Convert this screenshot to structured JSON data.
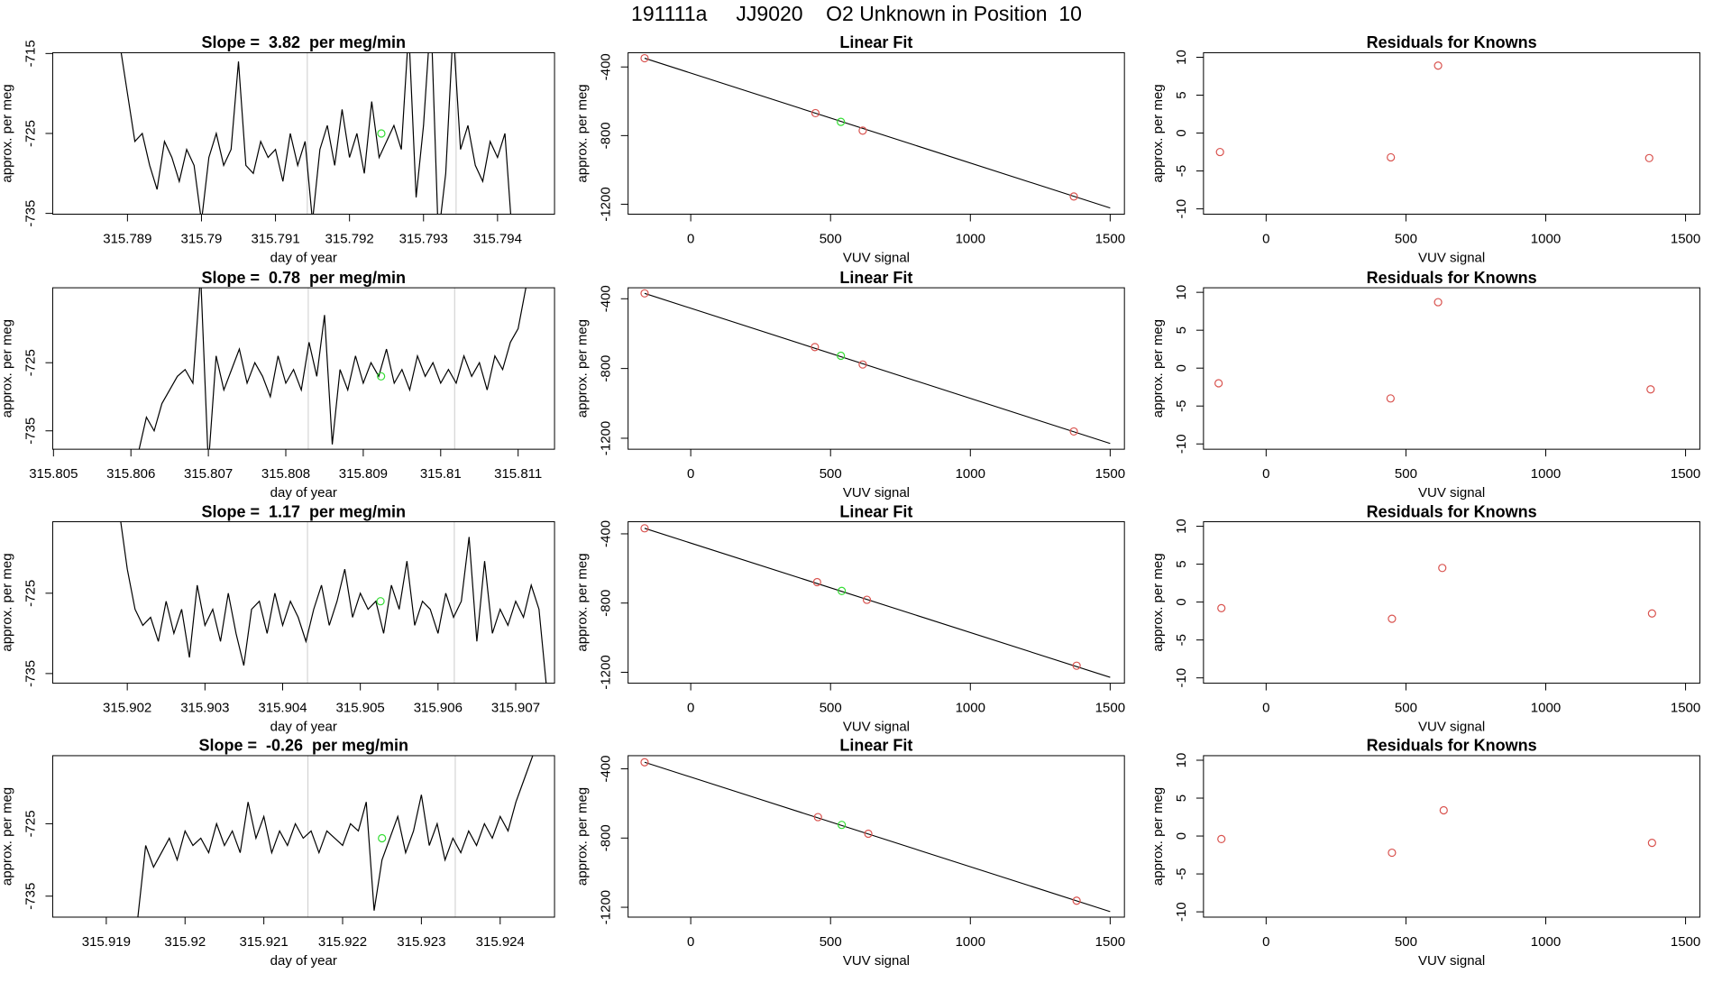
{
  "title": "191111a     JJ9020    O2 Unknown in Position  10",
  "chart_data": [
    {
      "type": "line",
      "title": "Slope =  3.82  per meg/min",
      "x_label": "day of year",
      "y_label": "approx. per meg",
      "color": "#000000",
      "x": [
        315.7889,
        315.789,
        315.7891,
        315.7892,
        315.7893,
        315.7894,
        315.7895,
        315.7896,
        315.7897,
        315.7898,
        315.7899,
        315.79,
        315.7901,
        315.7902,
        315.7903,
        315.7904,
        315.7905,
        315.7906,
        315.7907,
        315.7908,
        315.7909,
        315.791,
        315.7911,
        315.7912,
        315.7913,
        315.7914,
        315.7915,
        315.7916,
        315.7917,
        315.7918,
        315.7919,
        315.792,
        315.7921,
        315.7922,
        315.7923,
        315.7924,
        315.7925,
        315.7926,
        315.7927,
        315.7928,
        315.7929,
        315.793,
        315.7931,
        315.7932,
        315.7933,
        315.7934,
        315.7935,
        315.7936,
        315.7937,
        315.7938,
        315.7939,
        315.794,
        315.7941,
        315.7942
      ],
      "values": [
        -714,
        -720,
        -726,
        -725,
        -729,
        -732,
        -726,
        -728,
        -731,
        -727,
        -729,
        -736,
        -728,
        -725,
        -729,
        -727,
        -716,
        -729,
        -730,
        -726,
        -728,
        -727,
        -731,
        -725,
        -729,
        -726,
        -736,
        -727,
        -724,
        -729,
        -722,
        -728,
        -725,
        -730,
        -721,
        -728,
        -726,
        -724,
        -727,
        -712,
        -733,
        -724,
        -710,
        -738,
        -730,
        -712,
        -727,
        -724,
        -729,
        -731,
        -726,
        -728,
        -725,
        -738
      ],
      "vlines": [
        315.79143,
        315.79344
      ],
      "vline_color": "#cccccc",
      "marker": {
        "x": 315.79243,
        "y": -725,
        "color": "#33dd33"
      },
      "xlim": [
        315.78799,
        315.79477
      ],
      "xticks": [
        315.789,
        315.79,
        315.791,
        315.792,
        315.793,
        315.794
      ],
      "ylim": [
        -735.1,
        -714.9
      ],
      "yticks": [
        -735,
        -725,
        -715
      ]
    },
    {
      "type": "scatter",
      "title": "Linear Fit",
      "x_label": "VUV signal",
      "y_label": "approx. per meg",
      "series": [
        {
          "color": "#d9534f",
          "x": [
            -165,
            446,
            615,
            1370
          ],
          "values": [
            -349,
            -669,
            -771,
            -1155
          ]
        },
        {
          "color": "#33dd33",
          "x": [
            537
          ],
          "values": [
            -720
          ]
        }
      ],
      "fit": {
        "color": "#000000",
        "x": [
          -165,
          1500
        ],
        "values": [
          -349,
          -1222
        ]
      },
      "xlim": [
        -224,
        1551
      ],
      "xticks": [
        0,
        500,
        1000,
        1500
      ],
      "ylim": [
        -1258,
        -317
      ],
      "yticks": [
        -400,
        -800,
        -1200
      ]
    },
    {
      "type": "scatter",
      "title": "Residuals for Knowns",
      "x_label": "VUV signal",
      "y_label": "approx. per meg",
      "series": [
        {
          "color": "#d9534f",
          "x": [
            -165,
            446,
            615,
            1370
          ],
          "values": [
            -2.5,
            -3.2,
            8.9,
            -3.3
          ]
        }
      ],
      "xlim": [
        -224,
        1551
      ],
      "xticks": [
        0,
        500,
        1000,
        1500
      ],
      "ylim": [
        -10.7,
        10.6
      ],
      "yticks": [
        -10,
        -5,
        0,
        5,
        10
      ]
    },
    {
      "type": "line",
      "title": "Slope =  0.78  per meg/min",
      "x_label": "day of year",
      "y_label": "approx. per meg",
      "color": "#000000",
      "x": [
        315.8061,
        315.8062,
        315.8063,
        315.8064,
        315.8065,
        315.8066,
        315.8067,
        315.8068,
        315.8069,
        315.807,
        315.8071,
        315.8072,
        315.8073,
        315.8074,
        315.8075,
        315.8076,
        315.8077,
        315.8078,
        315.8079,
        315.808,
        315.8081,
        315.8082,
        315.8083,
        315.8084,
        315.8085,
        315.8086,
        315.8087,
        315.8088,
        315.8089,
        315.809,
        315.8091,
        315.8092,
        315.8093,
        315.8094,
        315.8095,
        315.8096,
        315.8097,
        315.8098,
        315.8099,
        315.81,
        315.8101,
        315.8102,
        315.8103,
        315.8104,
        315.8105,
        315.8106,
        315.8107,
        315.8108,
        315.8109,
        315.811,
        315.8111
      ],
      "values": [
        -738,
        -733,
        -735,
        -731,
        -729,
        -727,
        -726,
        -728,
        -712,
        -740,
        -724,
        -729,
        -726,
        -723,
        -728,
        -725,
        -727,
        -730,
        -724,
        -728,
        -726,
        -729,
        -722,
        -727,
        -718,
        -737,
        -726,
        -729,
        -724,
        -728,
        -725,
        -727,
        -723,
        -728,
        -726,
        -729,
        -724,
        -727,
        -725,
        -728,
        -726,
        -728,
        -724,
        -727,
        -725,
        -729,
        -724,
        -726,
        -722,
        -720,
        -714
      ],
      "vlines": [
        315.80829,
        315.81018
      ],
      "vline_color": "#cccccc",
      "marker": {
        "x": 315.80923,
        "y": -727,
        "color": "#33dd33"
      },
      "xlim": [
        315.80499,
        315.81147
      ],
      "xticks": [
        315.805,
        315.806,
        315.807,
        315.808,
        315.809,
        315.81,
        315.811
      ],
      "ylim": [
        -737.7,
        -714
      ],
      "yticks": [
        -735,
        -725
      ]
    },
    {
      "type": "scatter",
      "title": "Linear Fit",
      "x_label": "VUV signal",
      "y_label": "approx. per meg",
      "series": [
        {
          "color": "#d9534f",
          "x": [
            -165,
            444,
            615,
            1370
          ],
          "values": [
            -369,
            -677,
            -777,
            -1161
          ]
        },
        {
          "color": "#33dd33",
          "x": [
            537
          ],
          "values": [
            -727
          ]
        }
      ],
      "fit": {
        "color": "#000000",
        "x": [
          -165,
          1500
        ],
        "values": [
          -369,
          -1230
        ]
      },
      "xlim": [
        -224,
        1551
      ],
      "xticks": [
        0,
        500,
        1000,
        1500
      ],
      "ylim": [
        -1263,
        -337
      ],
      "yticks": [
        -400,
        -800,
        -1200
      ]
    },
    {
      "type": "scatter",
      "title": "Residuals for Knowns",
      "x_label": "VUV signal",
      "y_label": "approx. per meg",
      "series": [
        {
          "color": "#d9534f",
          "x": [
            -170,
            445,
            615,
            1375
          ],
          "values": [
            -2,
            -4,
            8.7,
            -2.8
          ]
        }
      ],
      "xlim": [
        -224,
        1551
      ],
      "xticks": [
        0,
        500,
        1000,
        1500
      ],
      "ylim": [
        -10.7,
        10.6
      ],
      "yticks": [
        -10,
        -5,
        0,
        5,
        10
      ]
    },
    {
      "type": "line",
      "title": "Slope =  1.17  per meg/min",
      "x_label": "day of year",
      "y_label": "approx. per meg",
      "color": "#000000",
      "x": [
        315.9019,
        315.902,
        315.9021,
        315.9022,
        315.9023,
        315.9024,
        315.9025,
        315.9026,
        315.9027,
        315.9028,
        315.9029,
        315.903,
        315.9031,
        315.9032,
        315.9033,
        315.9034,
        315.9035,
        315.9036,
        315.9037,
        315.9038,
        315.9039,
        315.904,
        315.9041,
        315.9042,
        315.9043,
        315.9044,
        315.9045,
        315.9046,
        315.9047,
        315.9048,
        315.9049,
        315.905,
        315.9051,
        315.9052,
        315.9053,
        315.9054,
        315.9055,
        315.9056,
        315.9057,
        315.9058,
        315.9059,
        315.906,
        315.9061,
        315.9062,
        315.9063,
        315.9064,
        315.9065,
        315.9066,
        315.9067,
        315.9068,
        315.9069,
        315.907,
        315.9071,
        315.9072,
        315.9073,
        315.9074
      ],
      "values": [
        -715,
        -722,
        -727,
        -729,
        -728,
        -731,
        -726,
        -730,
        -727,
        -733,
        -724,
        -729,
        -727,
        -731,
        -725,
        -730,
        -734,
        -727,
        -726,
        -730,
        -725,
        -729,
        -726,
        -728,
        -731,
        -727,
        -724,
        -729,
        -726,
        -722,
        -728,
        -725,
        -727,
        -726,
        -730,
        -724,
        -727,
        -721,
        -729,
        -726,
        -727,
        -730,
        -725,
        -728,
        -726,
        -718,
        -731,
        -721,
        -730,
        -727,
        -729,
        -726,
        -728,
        -724,
        -727,
        -737
      ],
      "vlines": [
        315.90432,
        315.90621
      ],
      "vline_color": "#cccccc",
      "marker": {
        "x": 315.90526,
        "y": -726,
        "color": "#33dd33"
      },
      "xlim": [
        315.90104,
        315.9075
      ],
      "xticks": [
        315.902,
        315.903,
        315.904,
        315.905,
        315.906,
        315.907
      ],
      "ylim": [
        -736.2,
        -716.1
      ],
      "yticks": [
        -735,
        -725
      ]
    },
    {
      "type": "scatter",
      "title": "Linear Fit",
      "x_label": "VUV signal",
      "y_label": "approx. per meg",
      "series": [
        {
          "color": "#d9534f",
          "x": [
            -165,
            452,
            630,
            1380
          ],
          "values": [
            -368,
            -679,
            -781,
            -1162
          ]
        },
        {
          "color": "#33dd33",
          "x": [
            540
          ],
          "values": [
            -730
          ]
        }
      ],
      "fit": {
        "color": "#000000",
        "x": [
          -165,
          1500
        ],
        "values": [
          -368,
          -1229
        ]
      },
      "xlim": [
        -224,
        1551
      ],
      "xticks": [
        0,
        500,
        1000,
        1500
      ],
      "ylim": [
        -1263,
        -330
      ],
      "yticks": [
        -400,
        -800,
        -1200
      ]
    },
    {
      "type": "scatter",
      "title": "Residuals for Knowns",
      "x_label": "VUV signal",
      "y_label": "approx. per meg",
      "series": [
        {
          "color": "#d9534f",
          "x": [
            -160,
            450,
            630,
            1380
          ],
          "values": [
            -0.8,
            -2.2,
            4.5,
            -1.5
          ]
        }
      ],
      "xlim": [
        -224,
        1551
      ],
      "xticks": [
        0,
        500,
        1000,
        1500
      ],
      "ylim": [
        -10.7,
        10.6
      ],
      "yticks": [
        -10,
        -5,
        0,
        5,
        10
      ]
    },
    {
      "type": "line",
      "title": "Slope =  -0.26  per meg/min",
      "x_label": "day of year",
      "y_label": "approx. per meg",
      "color": "#000000",
      "x": [
        315.9194,
        315.9195,
        315.9196,
        315.9197,
        315.9198,
        315.9199,
        315.92,
        315.9201,
        315.9202,
        315.9203,
        315.9204,
        315.9205,
        315.9206,
        315.9207,
        315.9208,
        315.9209,
        315.921,
        315.9211,
        315.9212,
        315.9213,
        315.9214,
        315.9215,
        315.9216,
        315.9217,
        315.9218,
        315.9219,
        315.922,
        315.9221,
        315.9222,
        315.9223,
        315.9224,
        315.9225,
        315.9226,
        315.9227,
        315.9228,
        315.9229,
        315.923,
        315.9231,
        315.9232,
        315.9233,
        315.9234,
        315.9235,
        315.9236,
        315.9237,
        315.9238,
        315.9239,
        315.924,
        315.9241,
        315.9242,
        315.9243,
        315.9244,
        315.9245
      ],
      "values": [
        -738,
        -728,
        -731,
        -729,
        -727,
        -730,
        -726,
        -728,
        -727,
        -729,
        -725,
        -728,
        -726,
        -729,
        -722,
        -727,
        -724,
        -729,
        -726,
        -728,
        -725,
        -727,
        -726,
        -729,
        -726,
        -727,
        -728,
        -725,
        -726,
        -722,
        -737,
        -730,
        -727,
        -724,
        -729,
        -726,
        -721,
        -728,
        -725,
        -730,
        -727,
        -729,
        -726,
        -728,
        -725,
        -727,
        -724,
        -726,
        -722,
        -719,
        -716,
        -713
      ],
      "vlines": [
        315.92156,
        315.92343
      ],
      "vline_color": "#cccccc",
      "marker": {
        "x": 315.9225,
        "y": -727,
        "color": "#33dd33"
      },
      "xlim": [
        315.91832,
        315.92469
      ],
      "xticks": [
        315.919,
        315.92,
        315.921,
        315.922,
        315.923,
        315.924
      ],
      "ylim": [
        -737.9,
        -715.6
      ],
      "yticks": [
        -735,
        -725
      ]
    },
    {
      "type": "scatter",
      "title": "Linear Fit",
      "x_label": "VUV signal",
      "y_label": "approx. per meg",
      "series": [
        {
          "color": "#d9534f",
          "x": [
            -165,
            455,
            635,
            1380
          ],
          "values": [
            -362,
            -679,
            -775,
            -1162
          ]
        },
        {
          "color": "#33dd33",
          "x": [
            540
          ],
          "values": [
            -724
          ]
        }
      ],
      "fit": {
        "color": "#000000",
        "x": [
          -165,
          1500
        ],
        "values": [
          -362,
          -1225
        ]
      },
      "xlim": [
        -224,
        1551
      ],
      "xticks": [
        0,
        500,
        1000,
        1500
      ],
      "ylim": [
        -1257,
        -324
      ],
      "yticks": [
        -400,
        -800,
        -1200
      ]
    },
    {
      "type": "scatter",
      "title": "Residuals for Knowns",
      "x_label": "VUV signal",
      "y_label": "approx. per meg",
      "series": [
        {
          "color": "#d9534f",
          "x": [
            -160,
            450,
            635,
            1380
          ],
          "values": [
            -0.4,
            -2.2,
            3.4,
            -0.9
          ]
        }
      ],
      "xlim": [
        -224,
        1551
      ],
      "xticks": [
        0,
        500,
        1000,
        1500
      ],
      "ylim": [
        -10.7,
        10.6
      ],
      "yticks": [
        -10,
        -5,
        0,
        5,
        10
      ]
    }
  ]
}
